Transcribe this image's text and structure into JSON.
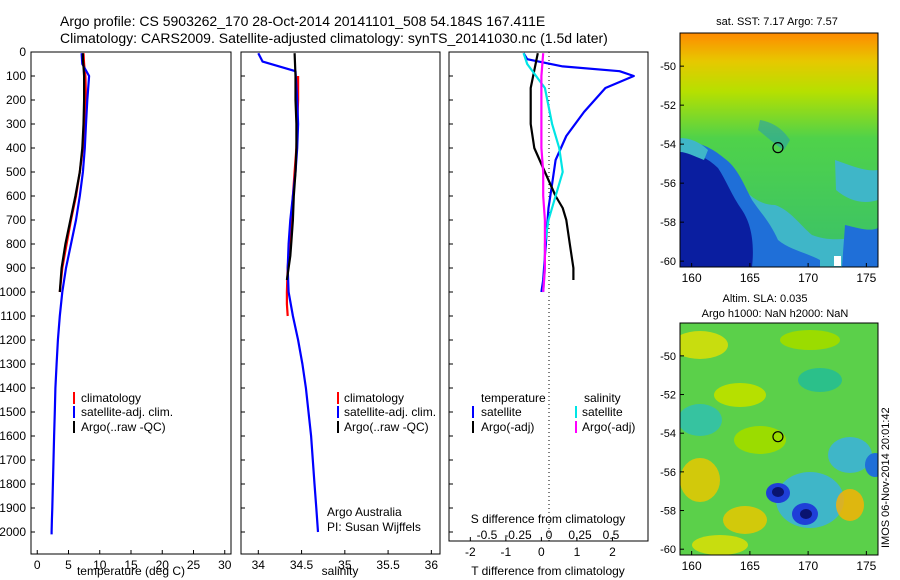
{
  "header": {
    "line1": "Argo profile: CS 5903262_170 28-Oct-2014 20141101_508 54.184S 167.411E",
    "line2": "Climatology: CARS2009. Satellite-adjusted climatology: synTS_20141030.nc (1.5d later)"
  },
  "colors": {
    "climatology": "#ff0000",
    "satellite": "#0000ff",
    "argo": "#000000",
    "sat_salinity": "#00e5e5",
    "argo_salinity": "#ff00ff"
  },
  "chart_data": [
    {
      "id": "temperature",
      "type": "line",
      "xlabel": "temperature (deg C)",
      "xlim": [
        -1,
        31
      ],
      "xticks": [
        0,
        5,
        10,
        15,
        20,
        25,
        30
      ],
      "ylim": [
        0,
        2100
      ],
      "yticks": [
        0,
        100,
        200,
        300,
        400,
        500,
        600,
        700,
        800,
        900,
        1000,
        1100,
        1200,
        1300,
        1400,
        1500,
        1600,
        1700,
        1800,
        1900,
        2000
      ],
      "legend": [
        "climatology",
        "satellite-adj. clim.",
        "Argo(..raw -QC)"
      ],
      "series": [
        {
          "name": "climatology",
          "color": "#ff0000",
          "x": [
            7.4,
            7.5,
            7.7,
            7.8,
            7.6,
            7.3,
            6.8,
            6.2,
            5.4,
            4.7,
            4.0,
            3.6
          ],
          "y": [
            5,
            50,
            100,
            200,
            300,
            400,
            500,
            600,
            700,
            800,
            900,
            1000
          ]
        },
        {
          "name": "satellite-adj. clim.",
          "color": "#0000ff",
          "x": [
            7.1,
            7.2,
            8.3,
            8.0,
            7.8,
            7.6,
            7.3,
            6.8,
            6.2,
            5.4,
            4.6,
            4.0,
            3.6,
            3.3,
            3.1,
            2.9,
            2.8,
            2.7,
            2.6,
            2.5,
            2.4,
            2.35,
            2.3,
            2.3
          ],
          "y": [
            5,
            50,
            100,
            200,
            300,
            400,
            500,
            600,
            700,
            800,
            900,
            1000,
            1100,
            1200,
            1300,
            1400,
            1500,
            1600,
            1700,
            1800,
            1900,
            1950,
            2000,
            2010
          ]
        },
        {
          "name": "Argo(..raw -QC)",
          "color": "#000000",
          "x": [
            7.3,
            7.3,
            7.4,
            7.5,
            7.5,
            7.4,
            7.2,
            6.8,
            6.1,
            5.3,
            4.5,
            3.9,
            3.6
          ],
          "y": [
            5,
            30,
            60,
            100,
            200,
            300,
            400,
            500,
            600,
            700,
            800,
            900,
            1000
          ]
        }
      ]
    },
    {
      "id": "salinity",
      "type": "line",
      "xlabel": "salinity",
      "xlim": [
        33.8,
        36.1
      ],
      "xticks": [
        34,
        34.5,
        35,
        35.5,
        36
      ],
      "ylim": [
        0,
        2100
      ],
      "legend": [
        "climatology",
        "satellite-adj. clim.",
        "Argo(..raw -QC)"
      ],
      "annotation": [
        "Argo Australia",
        "PI: Susan Wijffels"
      ],
      "series": [
        {
          "name": "climatology",
          "color": "#ff0000",
          "x": [
            34.46,
            34.46,
            34.45,
            34.44,
            34.42,
            34.4,
            34.38,
            34.36,
            34.34,
            34.33,
            34.33,
            34.34
          ],
          "y": [
            100,
            200,
            300,
            400,
            500,
            600,
            700,
            800,
            900,
            1000,
            1050,
            1100
          ]
        },
        {
          "name": "satellite-adj. clim.",
          "color": "#0000ff",
          "x": [
            34.0,
            34.05,
            34.43,
            34.45,
            34.46,
            34.45,
            34.43,
            34.4,
            34.37,
            34.35,
            34.34,
            34.35,
            34.4,
            34.46,
            34.51,
            34.55,
            34.58,
            34.61,
            34.63,
            34.65,
            34.67,
            34.69
          ],
          "y": [
            5,
            40,
            80,
            200,
            300,
            400,
            500,
            600,
            700,
            800,
            900,
            1000,
            1100,
            1200,
            1300,
            1400,
            1500,
            1600,
            1700,
            1800,
            1900,
            2000
          ]
        },
        {
          "name": "Argo(..raw -QC)",
          "color": "#000000",
          "x": [
            34.42,
            34.43,
            34.43,
            34.44,
            34.44,
            34.43,
            34.41,
            34.4,
            34.38,
            34.37,
            34.35,
            34.33
          ],
          "y": [
            5,
            100,
            200,
            300,
            400,
            500,
            600,
            700,
            800,
            850,
            900,
            950
          ]
        }
      ]
    },
    {
      "id": "difference",
      "type": "line",
      "xlabel": "T difference from climatology",
      "xlabel_top": "S difference from climatology",
      "xlim": [
        -2.6,
        3.0
      ],
      "xticks": [
        -2,
        -1,
        0,
        1,
        2
      ],
      "xticks_s": [
        "-0.5",
        "-0.25",
        "0",
        "0.25",
        "0.5"
      ],
      "ylim": [
        0,
        2100
      ],
      "legend_t": {
        "title": "temperature",
        "items": [
          "satellite",
          "Argo(-adj)"
        ]
      },
      "legend_s": {
        "title": "salinity",
        "items": [
          "satellite",
          "Argo(-adj)"
        ]
      },
      "series": [
        {
          "name": "T satellite",
          "color": "#0000ff",
          "x": [
            -0.5,
            -0.4,
            0.6,
            2.2,
            2.6,
            1.8,
            1.2,
            0.7,
            0.4,
            0.3,
            0.2,
            0.15,
            0.1,
            0.05,
            0.0
          ],
          "y": [
            5,
            30,
            60,
            80,
            100,
            150,
            250,
            350,
            450,
            550,
            650,
            750,
            850,
            950,
            1000
          ]
        },
        {
          "name": "T Argo(-adj)",
          "color": "#000000",
          "x": [
            -0.1,
            -0.3,
            -0.3,
            -0.2,
            0.1,
            0.4,
            0.6,
            0.7,
            0.8,
            0.9,
            0.9,
            0.9
          ],
          "y": [
            5,
            150,
            300,
            400,
            500,
            600,
            650,
            700,
            800,
            900,
            940,
            950
          ]
        },
        {
          "name": "S satellite",
          "color": "#00e5e5",
          "x": [
            -0.5,
            -0.4,
            0.1,
            0.3,
            0.5,
            0.6,
            0.4,
            0.2,
            0.1,
            0.1,
            0.05
          ],
          "y": [
            5,
            50,
            150,
            300,
            400,
            500,
            600,
            700,
            800,
            900,
            1000
          ]
        },
        {
          "name": "S Argo(-adj)",
          "color": "#ff00ff",
          "x": [
            0.05,
            0.0,
            0.0,
            0.0,
            0.0,
            0.05,
            0.05,
            0.1,
            0.1,
            0.1,
            0.05
          ],
          "y": [
            5,
            100,
            200,
            300,
            400,
            500,
            600,
            700,
            800,
            900,
            1000
          ]
        }
      ]
    },
    {
      "id": "sst_map",
      "type": "heatmap",
      "title": "sat. SST: 7.17 Argo: 7.57",
      "xlim": [
        159,
        176
      ],
      "ylim": [
        -60.3,
        -48.3
      ],
      "xticks": [
        160,
        165,
        170,
        175
      ],
      "yticks": [
        -50,
        -52,
        -54,
        -56,
        -58,
        -60
      ],
      "argo_position": [
        167.41,
        -54.18
      ]
    },
    {
      "id": "sla_map",
      "type": "heatmap",
      "title": "Altim. SLA: 0.035",
      "subtitle": "Argo h1000: NaN h2000: NaN",
      "xlim": [
        159,
        176
      ],
      "ylim": [
        -60.3,
        -48.3
      ],
      "xticks": [
        160,
        165,
        170,
        175
      ],
      "yticks": [
        -50,
        -52,
        -54,
        -56,
        -58,
        -60
      ],
      "argo_position": [
        167.41,
        -54.18
      ],
      "side_label": "IMOS 06-Nov-2014 20:01:42"
    }
  ]
}
